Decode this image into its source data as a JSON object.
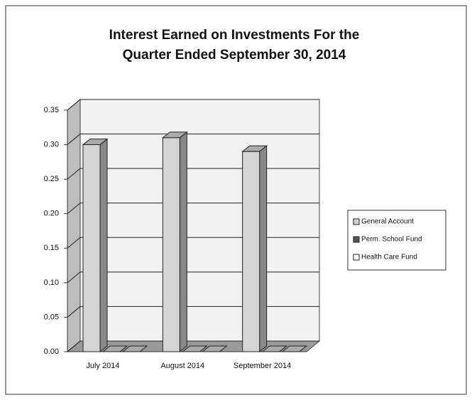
{
  "chart_data": {
    "type": "bar3d",
    "title": "Interest Earned on Investments For the",
    "subtitle": "Quarter Ended September 30, 2014",
    "categories": [
      "July 2014",
      "August 2014",
      "September 2014"
    ],
    "series": [
      {
        "name": "General Account",
        "color": "#d4d4d4",
        "values": [
          0.3,
          0.31,
          0.29
        ]
      },
      {
        "name": "Perm. School Fund",
        "color": "#555555",
        "values": [
          0,
          0,
          0
        ]
      },
      {
        "name": "Health Care Fund",
        "color": "#ffffff",
        "values": [
          0,
          0,
          0
        ]
      }
    ],
    "ylim": [
      0,
      0.35
    ],
    "yticks": [
      {
        "value": 0,
        "label": "0.00"
      },
      0.05,
      {
        "value": 0.1,
        "label": "0.10"
      },
      0.15,
      {
        "value": 0.2,
        "label": "0.20"
      },
      0.25,
      {
        "value": 0.3,
        "label": "0.30"
      },
      0.35
    ],
    "grid": true,
    "legend": "right"
  }
}
